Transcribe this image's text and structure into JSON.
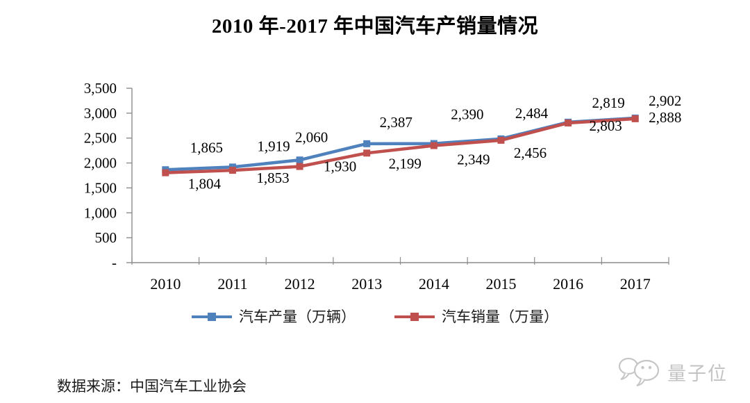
{
  "title": "2010 年-2017 年中国汽车产销量情况",
  "source_note": "数据来源：中国汽车工业协会",
  "watermark": {
    "text": "量子位"
  },
  "legend": [
    {
      "label": "汽车产量（万辆）",
      "color": "#4F81BD"
    },
    {
      "label": "汽车销量（万量）",
      "color": "#C0504D"
    }
  ],
  "colors": {
    "production_blue": "#4F81BD",
    "sales_red": "#C0504D",
    "axis_gray": "#8c8c8c",
    "watermark_gray": "#c3c3c3"
  },
  "chart_data": {
    "type": "line",
    "title": "2010 年-2017 年中国汽车产销量情况",
    "categories": [
      "2010",
      "2011",
      "2012",
      "2013",
      "2014",
      "2015",
      "2016",
      "2017"
    ],
    "series": [
      {
        "name": "汽车产量（万辆）",
        "color": "#4F81BD",
        "marker": "square",
        "values": [
          1865,
          1919,
          2060,
          2387,
          2390,
          2484,
          2819,
          2902
        ],
        "labels": [
          "1,865",
          "1,919",
          "2,060",
          "2,387",
          "2,390",
          "2,484",
          "2,819",
          "2,902"
        ]
      },
      {
        "name": "汽车销量（万量）",
        "color": "#C0504D",
        "marker": "square",
        "values": [
          1804,
          1853,
          1930,
          2199,
          2349,
          2456,
          2803,
          2888
        ],
        "labels": [
          "1,804",
          "1,853",
          "1,930",
          "2,199",
          "2,349",
          "2,456",
          "2,803",
          "2,888"
        ]
      }
    ],
    "xlabel": "",
    "ylabel": "",
    "ylim": [
      0,
      3500
    ],
    "ytick_step": 500,
    "ytick_labels": [
      "-",
      "500",
      "1,000",
      "1,500",
      "2,000",
      "2,500",
      "3,000",
      "3,500"
    ],
    "grid": false,
    "legend_position": "bottom",
    "label_offsets": [
      [
        [
          59,
          -32
        ],
        [
          59,
          -30
        ],
        [
          17,
          -33
        ],
        [
          42,
          -31
        ],
        [
          48,
          -42
        ],
        [
          44,
          -37
        ],
        [
          58,
          -28
        ],
        [
          43,
          -25
        ]
      ],
      [
        [
          56,
          16
        ],
        [
          58,
          11
        ],
        [
          58,
          0
        ],
        [
          55,
          15
        ],
        [
          57,
          20
        ],
        [
          42,
          18
        ],
        [
          54,
          4
        ],
        [
          43,
          -2
        ]
      ]
    ]
  }
}
